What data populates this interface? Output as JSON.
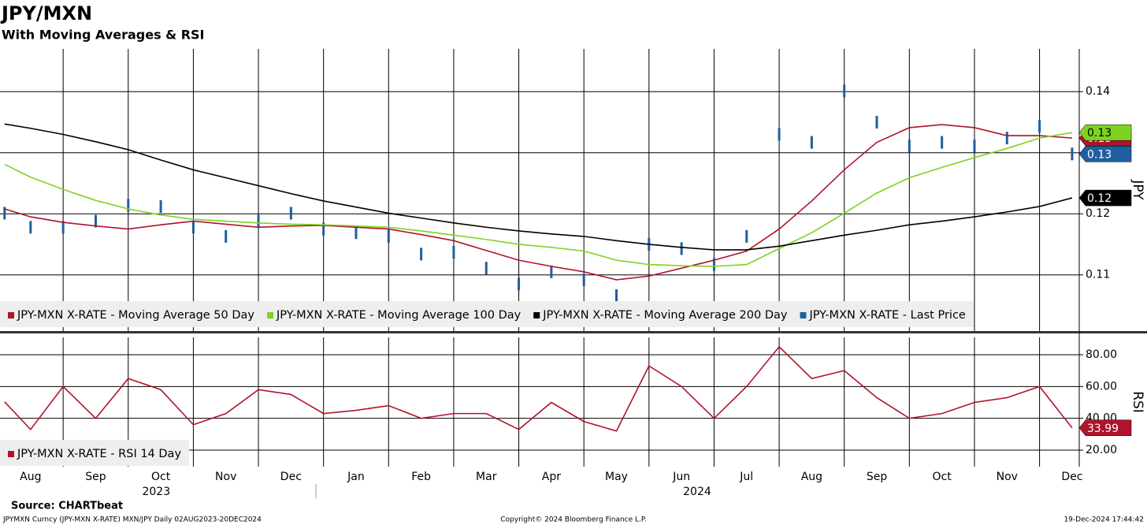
{
  "chart_data": [
    {
      "type": "line",
      "title": "JPY/MXN",
      "subtitle": "With Moving Averages & RSI",
      "y_label": "JPY",
      "x": [
        0.1,
        0.5,
        1,
        1.5,
        2,
        2.5,
        3,
        3.5,
        4,
        4.5,
        5,
        5.5,
        6,
        6.5,
        7,
        7.5,
        8,
        8.5,
        9,
        9.5,
        10,
        10.5,
        11,
        11.5,
        12,
        12.5,
        13,
        13.5,
        14,
        14.5,
        15,
        15.5,
        16,
        16.5
      ],
      "xlim": [
        0.03,
        16.61
      ],
      "ylim": [
        0.1008,
        0.147
      ],
      "yticks": [
        0.11,
        0.12,
        0.13,
        0.14
      ],
      "grid": true,
      "series": [
        {
          "name": "JPY-MXN X-RATE - Moving Average 50 Day",
          "color": "#b0132b",
          "last_label": "0.13",
          "values": [
            0.1208,
            0.1195,
            0.1186,
            0.118,
            0.1175,
            0.1182,
            0.1188,
            0.1183,
            0.1178,
            0.118,
            0.1181,
            0.1178,
            0.1175,
            0.1166,
            0.1156,
            0.114,
            0.1124,
            0.1114,
            0.1105,
            0.1092,
            0.1098,
            0.1111,
            0.1124,
            0.1139,
            0.1175,
            0.1221,
            0.1272,
            0.1317,
            0.1341,
            0.1346,
            0.1341,
            0.1328,
            0.1328,
            0.1324
          ]
        },
        {
          "name": "JPY-MXN X-RATE - Moving Average 100 Day",
          "color": "#7ed321",
          "last_label": "0.13",
          "values": [
            0.1281,
            0.126,
            0.124,
            0.1222,
            0.1208,
            0.1198,
            0.1191,
            0.1188,
            0.1185,
            0.1183,
            0.1182,
            0.118,
            0.1178,
            0.1172,
            0.1165,
            0.1158,
            0.115,
            0.1145,
            0.1139,
            0.1124,
            0.1117,
            0.1115,
            0.1114,
            0.1117,
            0.1143,
            0.1169,
            0.1201,
            0.1234,
            0.1259,
            0.1276,
            0.1292,
            0.1307,
            0.1324,
            0.1333
          ]
        },
        {
          "name": "JPY-MXN X-RATE - Moving Average 200 Day",
          "color": "#000000",
          "last_label": "0.12",
          "values": [
            0.1347,
            0.134,
            0.133,
            0.1318,
            0.1305,
            0.1288,
            0.1272,
            0.1259,
            0.1246,
            0.1233,
            0.1221,
            0.1211,
            0.1201,
            0.1193,
            0.1185,
            0.1178,
            0.1172,
            0.1167,
            0.1163,
            0.1156,
            0.115,
            0.1145,
            0.1141,
            0.1141,
            0.1147,
            0.1156,
            0.1165,
            0.1173,
            0.1182,
            0.1188,
            0.1195,
            0.1203,
            0.1212,
            0.1226
          ]
        },
        {
          "name": "JPY-MXN X-RATE - Last Price",
          "color": "#1f5fa0",
          "style": "bars",
          "last_label": "0.13",
          "values": [
            0.1201,
            0.1178,
            0.1178,
            0.1188,
            0.1214,
            0.1212,
            0.1178,
            0.1163,
            0.1188,
            0.1201,
            0.1175,
            0.1169,
            0.1163,
            0.1134,
            0.1137,
            0.1111,
            0.1085,
            0.1105,
            0.1092,
            0.1066,
            0.115,
            0.1143,
            0.1117,
            0.1163,
            0.133,
            0.1317,
            0.1401,
            0.135,
            0.1311,
            0.1317,
            0.1311,
            0.1324,
            0.1343,
            0.1298
          ]
        }
      ]
    },
    {
      "type": "line",
      "y_label": "RSI",
      "x": [
        0.1,
        0.5,
        1,
        1.5,
        2,
        2.5,
        3,
        3.5,
        4,
        4.5,
        5,
        5.5,
        6,
        6.5,
        7,
        7.5,
        8,
        8.5,
        9,
        9.5,
        10,
        10.5,
        11,
        11.5,
        12,
        12.5,
        13,
        13.5,
        14,
        14.5,
        15,
        15.5,
        16,
        16.5
      ],
      "xlim": [
        0.03,
        16.61
      ],
      "ylim": [
        9.6,
        90.9
      ],
      "yticks": [
        {
          "value": 20,
          "label": "20.00"
        },
        {
          "value": 40,
          "label": "40.00"
        },
        {
          "value": 60,
          "label": "60.00"
        },
        {
          "value": 80,
          "label": "80.00"
        }
      ],
      "grid": true,
      "xticks": [
        {
          "value": 0.5,
          "label": "Aug"
        },
        {
          "value": 1.5,
          "label": "Sep"
        },
        {
          "value": 2.5,
          "label": "Oct"
        },
        {
          "value": 3.5,
          "label": "Nov"
        },
        {
          "value": 4.5,
          "label": "Dec"
        },
        {
          "value": 5.5,
          "label": "Jan"
        },
        {
          "value": 6.5,
          "label": "Feb"
        },
        {
          "value": 7.5,
          "label": "Mar"
        },
        {
          "value": 8.5,
          "label": "Apr"
        },
        {
          "value": 9.5,
          "label": "May"
        },
        {
          "value": 10.5,
          "label": "Jun"
        },
        {
          "value": 11.5,
          "label": "Jul"
        },
        {
          "value": 12.5,
          "label": "Aug"
        },
        {
          "value": 13.5,
          "label": "Sep"
        },
        {
          "value": 14.5,
          "label": "Oct"
        },
        {
          "value": 15.5,
          "label": "Nov"
        },
        {
          "value": 16.5,
          "label": "Dec"
        }
      ],
      "year_labels": [
        {
          "value": 2.43,
          "label": "2023"
        },
        {
          "value": 10.74,
          "label": "2024"
        }
      ],
      "series": [
        {
          "name": "JPY-MXN X-RATE - RSI 14 Day",
          "color": "#b0132b",
          "last_label": "33.99",
          "values": [
            50.4,
            33,
            60,
            40,
            65,
            58,
            36,
            43,
            58,
            55,
            43,
            45,
            48,
            40,
            43,
            43,
            33,
            50,
            38,
            32,
            73,
            60,
            40,
            60,
            85,
            65,
            70,
            53,
            40,
            43,
            50,
            53,
            60,
            33.99
          ]
        }
      ]
    }
  ],
  "footer": {
    "source": "Source: CHARTbeat",
    "left": "JPYMXN Curncy (JPY-MXN X-RATE) MXN/JPY  Daily 02AUG2023-20DEC2024",
    "center": "Copyright© 2024 Bloomberg Finance L.P.",
    "right": "19-Dec-2024 17:44:42"
  }
}
